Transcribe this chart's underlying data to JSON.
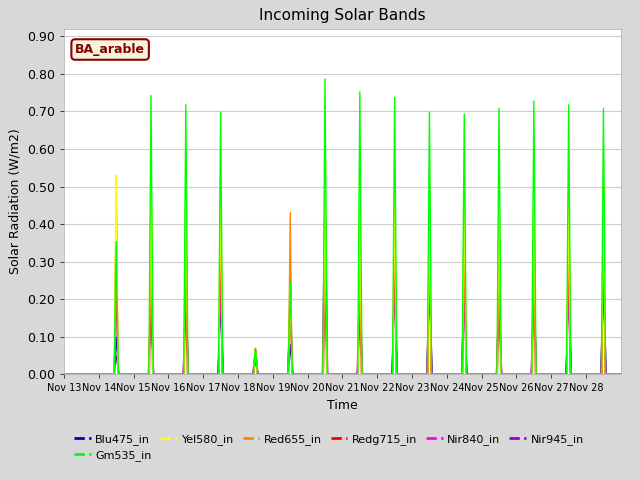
{
  "title": "Incoming Solar Bands",
  "xlabel": "Time",
  "ylabel": "Solar Radiation (W/m2)",
  "ylim": [
    0,
    0.92
  ],
  "yticks": [
    0.0,
    0.1,
    0.2,
    0.3,
    0.4,
    0.5,
    0.6,
    0.7,
    0.8,
    0.9
  ],
  "fig_bg_color": "#d8d8d8",
  "plot_bg_color": "#ffffff",
  "annotation_text": "BA_arable",
  "annotation_color": "#8B0000",
  "annotation_bg": "#f5f5dc",
  "series": {
    "Blu475_in": {
      "color": "#0000cc",
      "lw": 1.0
    },
    "Gm535_in": {
      "color": "#00ff00",
      "lw": 1.0
    },
    "Yel580_in": {
      "color": "#ffff00",
      "lw": 1.0
    },
    "Red655_in": {
      "color": "#ff8800",
      "lw": 1.0
    },
    "Redg715_in": {
      "color": "#ff0000",
      "lw": 1.0
    },
    "Nir840_in": {
      "color": "#ff00ff",
      "lw": 1.0
    },
    "Nir945_in": {
      "color": "#9900cc",
      "lw": 1.0
    }
  },
  "xtick_labels": [
    "Nov 13",
    "Nov 14",
    "Nov 15",
    "Nov 16",
    "Nov 17",
    "Nov 18",
    "Nov 19",
    "Nov 20",
    "Nov 21",
    "Nov 22",
    "Nov 23",
    "Nov 24",
    "Nov 25",
    "Nov 26",
    "Nov 27",
    "Nov 28"
  ],
  "n_days": 16,
  "peaks": {
    "Gm535_in": [
      0.0,
      0.36,
      0.755,
      0.73,
      0.71,
      0.07,
      0.25,
      0.8,
      0.765,
      0.75,
      0.71,
      0.705,
      0.72,
      0.74,
      0.73,
      0.72
    ],
    "Blu475_in": [
      0.0,
      0.1,
      0.2,
      0.21,
      0.2,
      0.04,
      0.08,
      0.22,
      0.17,
      0.27,
      0.27,
      0.26,
      0.23,
      0.25,
      0.26,
      0.27
    ],
    "Yel580_in": [
      0.0,
      0.54,
      0.54,
      0.54,
      0.53,
      0.07,
      0.24,
      0.53,
      0.46,
      0.51,
      0.46,
      0.51,
      0.51,
      0.52,
      0.51,
      0.51
    ],
    "Red655_in": [
      0.0,
      0.54,
      0.54,
      0.54,
      0.53,
      0.07,
      0.44,
      0.53,
      0.46,
      0.51,
      0.46,
      0.51,
      0.51,
      0.52,
      0.51,
      0.51
    ],
    "Redg715_in": [
      0.0,
      0.48,
      0.47,
      0.46,
      0.46,
      0.07,
      0.29,
      0.49,
      0.44,
      0.45,
      0.45,
      0.45,
      0.44,
      0.46,
      0.44,
      0.44
    ],
    "Nir840_in": [
      0.0,
      0.21,
      0.24,
      0.23,
      0.24,
      0.06,
      0.2,
      0.5,
      0.22,
      0.27,
      0.28,
      0.24,
      0.24,
      0.26,
      0.25,
      0.27
    ],
    "Nir945_in": [
      0.0,
      0.05,
      0.22,
      0.235,
      0.245,
      0.07,
      0.19,
      0.49,
      0.265,
      0.27,
      0.27,
      0.245,
      0.23,
      0.25,
      0.255,
      0.265
    ]
  },
  "widths": {
    "Gm535_in": 0.06,
    "Blu475_in": 0.07,
    "Yel580_in": 0.055,
    "Red655_in": 0.05,
    "Redg715_in": 0.045,
    "Nir840_in": 0.065,
    "Nir945_in": 0.075
  }
}
